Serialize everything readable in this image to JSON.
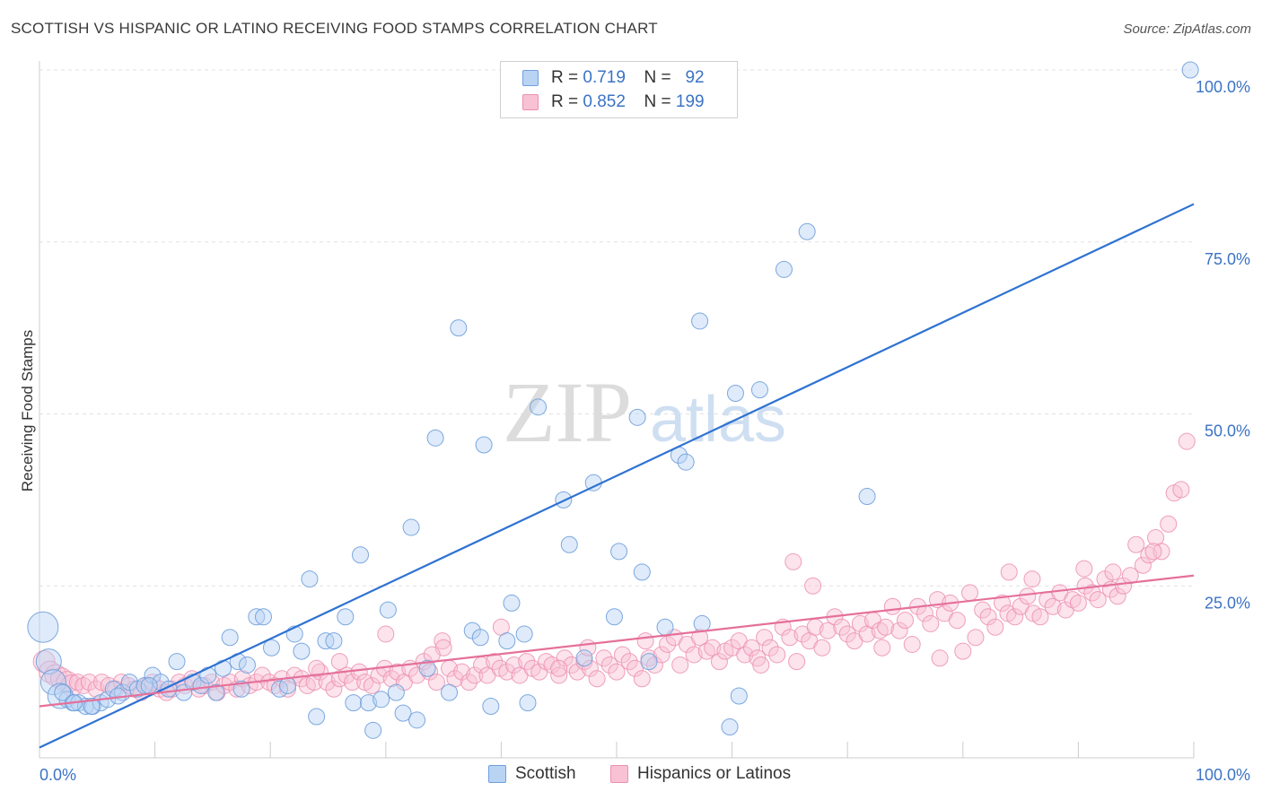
{
  "title": "SCOTTISH VS HISPANIC OR LATINO RECEIVING FOOD STAMPS CORRELATION CHART",
  "source": "Source: ZipAtlas.com",
  "watermark": {
    "zip": "ZIP",
    "atlas": "atlas"
  },
  "legend": {
    "scottish": {
      "r_label": "R =",
      "r_value": "0.719",
      "n_label": "N =",
      "n_value": "92"
    },
    "hispanic": {
      "r_label": "R =",
      "r_value": "0.852",
      "n_label": "N =",
      "n_value": "199"
    }
  },
  "colors": {
    "scottish_fill": "#b9d3f3",
    "scottish_stroke": "#6f9fdc",
    "scottish_line": "#2e72d2",
    "hispanic_fill": "#f8c2d4",
    "hispanic_stroke": "#ec8fb0",
    "hispanic_line": "#e5709a",
    "axis_label": "#3b73c4",
    "grid": "#e1e1e1"
  },
  "chart_data": {
    "type": "scatter",
    "title": "SCOTTISH VS HISPANIC OR LATINO RECEIVING FOOD STAMPS CORRELATION CHART",
    "xlabel": "",
    "ylabel": "Receiving Food Stamps",
    "xlim": [
      0,
      100
    ],
    "ylim": [
      0,
      100
    ],
    "x_tick_labels": [
      "0.0%",
      "100.0%"
    ],
    "y_ticks": [
      25,
      50,
      75,
      100
    ],
    "y_tick_labels": [
      "25.0%",
      "50.0%",
      "75.0%",
      "100.0%"
    ],
    "grid": "horizontal dashed",
    "legend_position": "top-center",
    "series": [
      {
        "name": "Scottish",
        "r": 0.719,
        "n": 92,
        "trendline": {
          "x": [
            0,
            100
          ],
          "y": [
            1.5,
            80.5
          ]
        },
        "points": [
          [
            0.3,
            19
          ],
          [
            0.8,
            14
          ],
          [
            1.2,
            11
          ],
          [
            1.8,
            9
          ],
          [
            2.4,
            8.5
          ],
          [
            2.9,
            8
          ],
          [
            3.4,
            8
          ],
          [
            4.0,
            7.5
          ],
          [
            4.6,
            7.5
          ],
          [
            5.3,
            8
          ],
          [
            5.9,
            8.5
          ],
          [
            6.4,
            10
          ],
          [
            7.2,
            9.5
          ],
          [
            7.8,
            11
          ],
          [
            8.5,
            10
          ],
          [
            9.1,
            10.5
          ],
          [
            9.8,
            12
          ],
          [
            10.5,
            11
          ],
          [
            11.2,
            10
          ],
          [
            11.9,
            14
          ],
          [
            12.5,
            9.5
          ],
          [
            13.3,
            11
          ],
          [
            14.0,
            10.5
          ],
          [
            14.6,
            12
          ],
          [
            15.3,
            9.5
          ],
          [
            15.9,
            13
          ],
          [
            16.5,
            17.5
          ],
          [
            17.2,
            14
          ],
          [
            18.0,
            13.5
          ],
          [
            17.5,
            10
          ],
          [
            18.8,
            20.5
          ],
          [
            19.4,
            20.5
          ],
          [
            20.1,
            16
          ],
          [
            20.8,
            10
          ],
          [
            21.5,
            10.5
          ],
          [
            22.1,
            18
          ],
          [
            22.7,
            15.5
          ],
          [
            23.4,
            26
          ],
          [
            24.0,
            6
          ],
          [
            24.8,
            17
          ],
          [
            25.5,
            17
          ],
          [
            26.5,
            20.5
          ],
          [
            27.2,
            8
          ],
          [
            27.8,
            29.5
          ],
          [
            28.5,
            8
          ],
          [
            28.9,
            4
          ],
          [
            29.6,
            8.5
          ],
          [
            30.2,
            21.5
          ],
          [
            30.9,
            9.5
          ],
          [
            31.5,
            6.5
          ],
          [
            32.2,
            33.5
          ],
          [
            32.7,
            5.5
          ],
          [
            33.6,
            13
          ],
          [
            34.3,
            46.5
          ],
          [
            35.5,
            9.5
          ],
          [
            36.3,
            62.5
          ],
          [
            37.5,
            18.5
          ],
          [
            38.2,
            17.5
          ],
          [
            38.5,
            45.5
          ],
          [
            39.1,
            7.5
          ],
          [
            40.5,
            17
          ],
          [
            40.9,
            22.5
          ],
          [
            42.0,
            18
          ],
          [
            42.3,
            8
          ],
          [
            43.2,
            51
          ],
          [
            45.4,
            37.5
          ],
          [
            45.9,
            31
          ],
          [
            47.2,
            14.5
          ],
          [
            48.0,
            40
          ],
          [
            49.8,
            20.5
          ],
          [
            50.2,
            30
          ],
          [
            51.8,
            49.5
          ],
          [
            52.2,
            27
          ],
          [
            52.8,
            14
          ],
          [
            54.2,
            19
          ],
          [
            55.4,
            44
          ],
          [
            56.0,
            43
          ],
          [
            57.2,
            63.5
          ],
          [
            57.4,
            19.5
          ],
          [
            59.8,
            4.5
          ],
          [
            60.6,
            9
          ],
          [
            60.3,
            53
          ],
          [
            62.4,
            53.5
          ],
          [
            64.5,
            71
          ],
          [
            66.5,
            76.5
          ],
          [
            71.7,
            38
          ],
          [
            99.7,
            100
          ],
          [
            2.0,
            9.5
          ],
          [
            3.0,
            8
          ],
          [
            4.5,
            7.5
          ],
          [
            6.8,
            9
          ],
          [
            9.5,
            10.5
          ]
        ]
      },
      {
        "name": "Hispanics or Latinos",
        "r": 0.852,
        "n": 199,
        "trendline": {
          "x": [
            0,
            100
          ],
          "y": [
            7.5,
            26.5
          ]
        },
        "points": [
          [
            0.4,
            14
          ],
          [
            0.9,
            12.5
          ],
          [
            1.4,
            12
          ],
          [
            1.9,
            11.5
          ],
          [
            2.4,
            11
          ],
          [
            2.8,
            10.5
          ],
          [
            3.3,
            11
          ],
          [
            3.8,
            10.5
          ],
          [
            4.3,
            11
          ],
          [
            4.9,
            10
          ],
          [
            5.4,
            11
          ],
          [
            6.0,
            10.5
          ],
          [
            6.6,
            10
          ],
          [
            7.1,
            11
          ],
          [
            7.7,
            10.5
          ],
          [
            8.2,
            10
          ],
          [
            8.8,
            9.5
          ],
          [
            9.3,
            10.5
          ],
          [
            9.8,
            11
          ],
          [
            10.4,
            10
          ],
          [
            11.0,
            9.5
          ],
          [
            11.5,
            10
          ],
          [
            12.1,
            11
          ],
          [
            12.6,
            10.5
          ],
          [
            13.2,
            11.5
          ],
          [
            13.8,
            10
          ],
          [
            14.3,
            10.5
          ],
          [
            14.9,
            11
          ],
          [
            15.4,
            9.5
          ],
          [
            16.0,
            10.5
          ],
          [
            16.5,
            11
          ],
          [
            17.1,
            10
          ],
          [
            17.6,
            11.5
          ],
          [
            18.2,
            10.5
          ],
          [
            18.8,
            11
          ],
          [
            19.3,
            12
          ],
          [
            19.9,
            11
          ],
          [
            20.4,
            10.5
          ],
          [
            21.0,
            11.5
          ],
          [
            21.5,
            10
          ],
          [
            22.1,
            12
          ],
          [
            22.7,
            11.5
          ],
          [
            23.2,
            10.5
          ],
          [
            23.8,
            11
          ],
          [
            24.3,
            12.5
          ],
          [
            24.9,
            11
          ],
          [
            25.5,
            10
          ],
          [
            26.0,
            11.5
          ],
          [
            26.6,
            12
          ],
          [
            27.1,
            11
          ],
          [
            27.7,
            12.5
          ],
          [
            28.2,
            11
          ],
          [
            28.8,
            10.5
          ],
          [
            29.4,
            12
          ],
          [
            29.9,
            13
          ],
          [
            30.5,
            11.5
          ],
          [
            31.0,
            12.5
          ],
          [
            31.6,
            11
          ],
          [
            32.1,
            13
          ],
          [
            32.7,
            12
          ],
          [
            33.3,
            14
          ],
          [
            33.8,
            12.5
          ],
          [
            34.4,
            11
          ],
          [
            34.9,
            17
          ],
          [
            35.5,
            13
          ],
          [
            36.0,
            11.5
          ],
          [
            36.6,
            12.5
          ],
          [
            37.2,
            11
          ],
          [
            37.7,
            12
          ],
          [
            38.3,
            13.5
          ],
          [
            38.8,
            12
          ],
          [
            39.4,
            14
          ],
          [
            39.9,
            13
          ],
          [
            40.5,
            12.5
          ],
          [
            41.1,
            13.5
          ],
          [
            41.6,
            12
          ],
          [
            42.2,
            14
          ],
          [
            42.7,
            13
          ],
          [
            43.3,
            12.5
          ],
          [
            43.9,
            14
          ],
          [
            44.4,
            13.5
          ],
          [
            45.0,
            12
          ],
          [
            45.5,
            14.5
          ],
          [
            46.1,
            13.5
          ],
          [
            46.6,
            12.5
          ],
          [
            47.2,
            14
          ],
          [
            47.7,
            13
          ],
          [
            48.3,
            11.5
          ],
          [
            48.9,
            14.5
          ],
          [
            49.4,
            13.5
          ],
          [
            50.0,
            12.5
          ],
          [
            50.5,
            15
          ],
          [
            51.1,
            14
          ],
          [
            51.6,
            13
          ],
          [
            52.2,
            11.5
          ],
          [
            52.8,
            14.5
          ],
          [
            53.3,
            13.5
          ],
          [
            53.9,
            15
          ],
          [
            54.4,
            16.5
          ],
          [
            55.0,
            17.5
          ],
          [
            55.5,
            13.5
          ],
          [
            56.1,
            16.5
          ],
          [
            56.7,
            15
          ],
          [
            57.2,
            17.5
          ],
          [
            57.8,
            15.5
          ],
          [
            58.3,
            16
          ],
          [
            58.9,
            14
          ],
          [
            59.4,
            15.5
          ],
          [
            60.0,
            16
          ],
          [
            60.6,
            17
          ],
          [
            61.1,
            15
          ],
          [
            61.7,
            16
          ],
          [
            62.2,
            14.5
          ],
          [
            62.8,
            17.5
          ],
          [
            63.3,
            16
          ],
          [
            63.9,
            15
          ],
          [
            64.4,
            19
          ],
          [
            65.0,
            17.5
          ],
          [
            65.6,
            14
          ],
          [
            66.1,
            18
          ],
          [
            66.7,
            17
          ],
          [
            67.2,
            19
          ],
          [
            67.8,
            16
          ],
          [
            68.3,
            18.5
          ],
          [
            68.9,
            20.5
          ],
          [
            69.5,
            19
          ],
          [
            70.0,
            18
          ],
          [
            70.6,
            17
          ],
          [
            71.1,
            19.5
          ],
          [
            71.7,
            18
          ],
          [
            72.2,
            20
          ],
          [
            72.8,
            18.5
          ],
          [
            73.3,
            19
          ],
          [
            73.9,
            22
          ],
          [
            74.5,
            18.5
          ],
          [
            75.0,
            20
          ],
          [
            75.6,
            16.5
          ],
          [
            76.1,
            22
          ],
          [
            76.7,
            21
          ],
          [
            77.2,
            19.5
          ],
          [
            77.8,
            23
          ],
          [
            78.4,
            21
          ],
          [
            78.9,
            22.5
          ],
          [
            79.5,
            20
          ],
          [
            80.0,
            15.5
          ],
          [
            80.6,
            24
          ],
          [
            81.1,
            17.5
          ],
          [
            81.7,
            21.5
          ],
          [
            82.2,
            20.5
          ],
          [
            82.8,
            19
          ],
          [
            83.4,
            22.5
          ],
          [
            83.9,
            21
          ],
          [
            84.5,
            20.5
          ],
          [
            85.0,
            22
          ],
          [
            85.6,
            23.5
          ],
          [
            86.1,
            21
          ],
          [
            86.7,
            20.5
          ],
          [
            87.3,
            23
          ],
          [
            87.8,
            22
          ],
          [
            88.4,
            24
          ],
          [
            88.9,
            21.5
          ],
          [
            89.5,
            23
          ],
          [
            90.0,
            22.5
          ],
          [
            90.6,
            25
          ],
          [
            91.2,
            24
          ],
          [
            91.7,
            23
          ],
          [
            92.3,
            26
          ],
          [
            92.8,
            24.5
          ],
          [
            93.4,
            23.5
          ],
          [
            93.9,
            25
          ],
          [
            94.5,
            26.5
          ],
          [
            95.0,
            31
          ],
          [
            95.6,
            28
          ],
          [
            96.1,
            29.5
          ],
          [
            96.7,
            32
          ],
          [
            97.2,
            30
          ],
          [
            97.8,
            34
          ],
          [
            98.3,
            38.5
          ],
          [
            98.9,
            39
          ],
          [
            99.4,
            46
          ],
          [
            30.0,
            18
          ],
          [
            35.0,
            16
          ],
          [
            40.0,
            19
          ],
          [
            45.0,
            13
          ],
          [
            47.5,
            16
          ],
          [
            52.5,
            17
          ],
          [
            62.5,
            13.5
          ],
          [
            65.3,
            28.5
          ],
          [
            67.0,
            25
          ],
          [
            73.0,
            16
          ],
          [
            78.0,
            14.5
          ],
          [
            84.0,
            27
          ],
          [
            86.0,
            26
          ],
          [
            90.5,
            27.5
          ],
          [
            93.0,
            27
          ],
          [
            96.5,
            30
          ],
          [
            24.0,
            13
          ],
          [
            26.0,
            14
          ],
          [
            34.0,
            15
          ]
        ]
      }
    ]
  },
  "bottom_legend": {
    "scottish": "Scottish",
    "hispanic": "Hispanics or Latinos"
  }
}
